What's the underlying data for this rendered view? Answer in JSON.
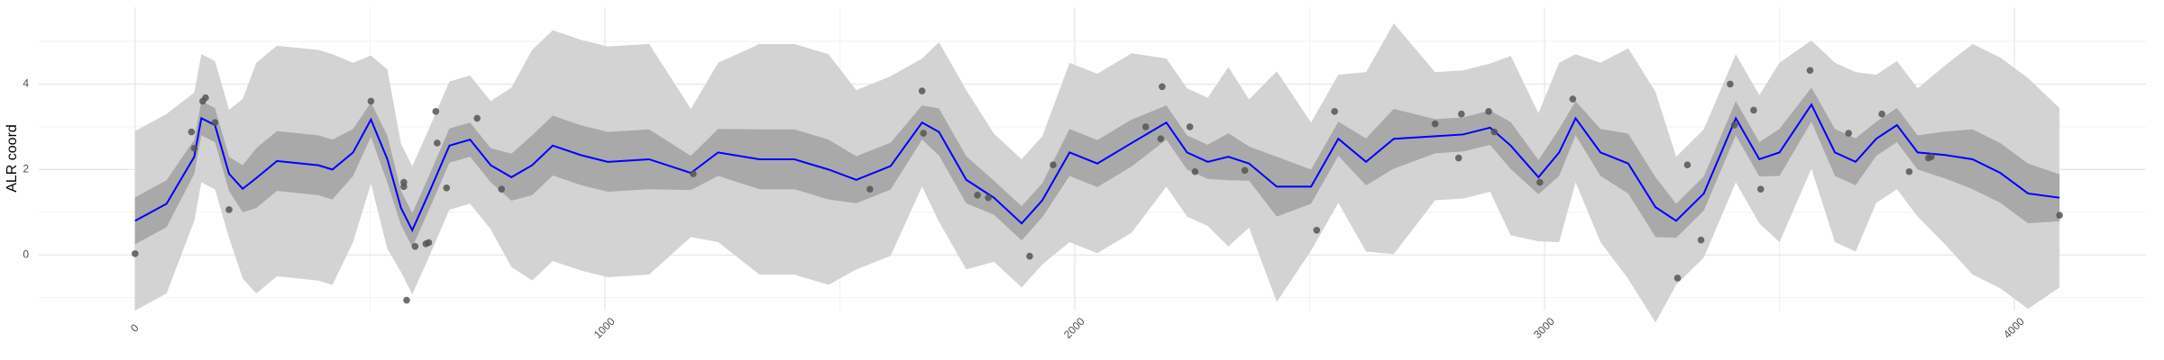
{
  "chart_data": {
    "type": "line",
    "y_label": "ALR coord",
    "xlim": [
      -205,
      4280
    ],
    "ylim": [
      -1.3,
      5.8
    ],
    "xticks": [
      0,
      1000,
      2000,
      3000,
      4000
    ],
    "yticks": [
      0,
      2,
      4
    ],
    "x_minor_grid": [
      500,
      1500,
      2500,
      3500
    ],
    "y_minor_grid": [
      -1,
      1,
      3,
      5
    ],
    "grid": true,
    "x": [
      0,
      67,
      126,
      141,
      170,
      200,
      229,
      258,
      302,
      390,
      420,
      464,
      502,
      537,
      566,
      590,
      625,
      669,
      713,
      757,
      801,
      845,
      889,
      948,
      1006,
      1094,
      1183,
      1241,
      1329,
      1403,
      1476,
      1535,
      1608,
      1675,
      1711,
      1769,
      1828,
      1887,
      1931,
      1989,
      2048,
      2121,
      2195,
      2239,
      2283,
      2327,
      2371,
      2430,
      2503,
      2561,
      2620,
      2679,
      2767,
      2826,
      2884,
      2928,
      2987,
      3031,
      3066,
      3119,
      3178,
      3236,
      3280,
      3339,
      3407,
      3457,
      3500,
      3568,
      3618,
      3662,
      3706,
      3750,
      3794,
      3853,
      3911,
      3970,
      4029,
      4096
    ],
    "bands": [
      {
        "color": "#d3d3d3",
        "lower": [
          -1.3,
          -0.9,
          0.8,
          1.7,
          1.54,
          0.4,
          -0.55,
          -0.9,
          -0.5,
          -0.6,
          -0.7,
          0.3,
          1.67,
          0.14,
          -0.4,
          -0.92,
          -0.06,
          1.06,
          1.2,
          0.6,
          -0.28,
          -0.6,
          -0.14,
          -0.36,
          -0.52,
          -0.46,
          0.42,
          0.3,
          -0.46,
          -0.46,
          -0.7,
          -0.34,
          -0.02,
          1.6,
          0.78,
          -0.34,
          -0.16,
          -0.76,
          -0.22,
          0.3,
          0.04,
          0.52,
          1.6,
          0.9,
          0.68,
          0.2,
          0.64,
          -1.1,
          0.1,
          1.22,
          0.08,
          0.02,
          1.28,
          1.32,
          1.48,
          0.46,
          0.32,
          0.3,
          1.7,
          0.3,
          -0.56,
          -1.58,
          -0.7,
          -0.06,
          1.7,
          0.74,
          0.3,
          2.02,
          0.3,
          0.08,
          1.22,
          1.54,
          0.9,
          0.24,
          -0.46,
          -0.78,
          -1.26,
          -0.76
        ],
        "upper": [
          2.9,
          3.3,
          3.8,
          4.7,
          4.54,
          3.4,
          3.65,
          4.5,
          4.9,
          4.8,
          4.7,
          4.5,
          4.67,
          4.34,
          2.6,
          2.08,
          2.94,
          4.06,
          4.2,
          3.6,
          3.92,
          4.8,
          5.26,
          5.04,
          4.88,
          4.94,
          3.42,
          4.5,
          4.94,
          4.94,
          4.7,
          3.86,
          4.18,
          4.6,
          4.98,
          3.86,
          2.84,
          2.24,
          2.78,
          4.5,
          4.24,
          4.72,
          4.6,
          3.9,
          3.68,
          4.4,
          3.64,
          4.3,
          3.1,
          4.22,
          4.28,
          5.42,
          4.28,
          4.32,
          4.48,
          4.66,
          3.32,
          4.5,
          4.7,
          4.5,
          4.84,
          3.82,
          2.3,
          2.94,
          4.7,
          3.74,
          4.5,
          5.02,
          4.5,
          4.28,
          4.22,
          4.54,
          3.9,
          4.44,
          4.94,
          4.62,
          4.14,
          3.44
        ]
      },
      {
        "color": "#a9a9a9",
        "lower": [
          0.25,
          0.65,
          1.9,
          2.8,
          2.64,
          1.5,
          1.0,
          1.1,
          1.5,
          1.4,
          1.3,
          1.85,
          2.77,
          1.69,
          0.7,
          0.18,
          1.04,
          2.16,
          2.3,
          1.7,
          1.27,
          1.4,
          1.86,
          1.64,
          1.48,
          1.54,
          1.52,
          1.85,
          1.54,
          1.54,
          1.3,
          1.21,
          1.53,
          2.7,
          2.33,
          1.21,
          0.94,
          0.34,
          0.88,
          1.85,
          1.59,
          2.07,
          2.7,
          2.0,
          1.78,
          1.75,
          1.74,
          0.9,
          1.2,
          2.32,
          1.63,
          2.02,
          2.38,
          2.42,
          2.58,
          2.01,
          1.42,
          1.85,
          2.8,
          1.85,
          1.44,
          0.42,
          0.4,
          1.04,
          2.8,
          1.84,
          1.85,
          3.12,
          1.85,
          1.63,
          2.32,
          2.64,
          2.0,
          1.79,
          1.54,
          1.22,
          0.74,
          0.79
        ],
        "upper": [
          1.35,
          1.75,
          2.7,
          3.6,
          3.44,
          2.3,
          2.1,
          2.5,
          2.9,
          2.8,
          2.7,
          2.95,
          3.57,
          2.79,
          1.5,
          0.98,
          1.84,
          2.96,
          3.1,
          2.5,
          2.37,
          2.8,
          3.26,
          3.04,
          2.88,
          2.94,
          2.32,
          2.95,
          2.94,
          2.94,
          2.7,
          2.31,
          2.63,
          3.5,
          3.43,
          2.31,
          1.74,
          1.14,
          1.68,
          2.95,
          2.69,
          3.17,
          3.5,
          2.8,
          2.58,
          2.85,
          2.54,
          2.3,
          2.0,
          3.12,
          2.73,
          3.42,
          3.18,
          3.22,
          3.38,
          3.11,
          2.22,
          2.95,
          3.6,
          2.95,
          2.84,
          1.82,
          1.2,
          1.84,
          3.6,
          2.64,
          2.95,
          3.92,
          2.95,
          2.73,
          3.12,
          3.44,
          2.8,
          2.89,
          2.94,
          2.62,
          2.14,
          1.89
        ]
      }
    ],
    "series": [
      {
        "color": "#0000ff",
        "values": [
          0.8,
          1.2,
          2.3,
          3.2,
          3.04,
          1.9,
          1.55,
          1.8,
          2.2,
          2.1,
          2.0,
          2.4,
          3.17,
          2.24,
          1.1,
          0.58,
          1.44,
          2.56,
          2.7,
          2.1,
          1.82,
          2.1,
          2.56,
          2.34,
          2.18,
          2.24,
          1.92,
          2.4,
          2.24,
          2.24,
          2.0,
          1.76,
          2.08,
          3.1,
          2.88,
          1.76,
          1.34,
          0.74,
          1.28,
          2.4,
          2.14,
          2.62,
          3.1,
          2.4,
          2.18,
          2.3,
          2.14,
          1.6,
          1.6,
          2.72,
          2.18,
          2.72,
          2.78,
          2.82,
          2.98,
          2.56,
          1.82,
          2.4,
          3.2,
          2.4,
          2.14,
          1.12,
          0.8,
          1.44,
          3.2,
          2.24,
          2.4,
          3.52,
          2.4,
          2.18,
          2.72,
          3.04,
          2.4,
          2.34,
          2.24,
          1.92,
          1.44,
          1.34
        ]
      }
    ],
    "points": {
      "color": "#555555",
      "x": [
        0,
        120,
        126,
        144,
        150,
        170,
        200,
        502,
        572,
        572,
        578,
        596,
        619,
        625,
        640,
        643,
        663,
        728,
        780,
        1188,
        1564,
        1675,
        1678,
        1793,
        1816,
        1904,
        1954,
        2151,
        2183,
        2186,
        2245,
        2256,
        2362,
        2515,
        2553,
        2767,
        2817,
        2823,
        2881,
        2893,
        2990,
        3060,
        3304,
        3283,
        3333,
        3395,
        3404,
        3445,
        3460,
        3565,
        3647,
        3718,
        3776,
        3817,
        3823,
        4096
      ],
      "y": [
        0.03,
        2.88,
        2.5,
        3.6,
        3.68,
        3.1,
        1.06,
        3.6,
        1.7,
        1.6,
        -1.06,
        0.2,
        0.26,
        0.29,
        3.36,
        2.62,
        1.57,
        3.2,
        1.54,
        1.9,
        1.54,
        3.84,
        2.85,
        1.4,
        1.34,
        -0.03,
        2.11,
        3.0,
        2.72,
        3.94,
        3.0,
        1.95,
        1.98,
        0.58,
        3.36,
        3.07,
        2.27,
        3.3,
        3.36,
        2.88,
        1.7,
        3.65,
        2.11,
        -0.54,
        0.35,
        4.0,
        3.04,
        3.39,
        1.54,
        4.32,
        2.85,
        3.3,
        1.95,
        2.27,
        2.3,
        0.93
      ]
    }
  }
}
